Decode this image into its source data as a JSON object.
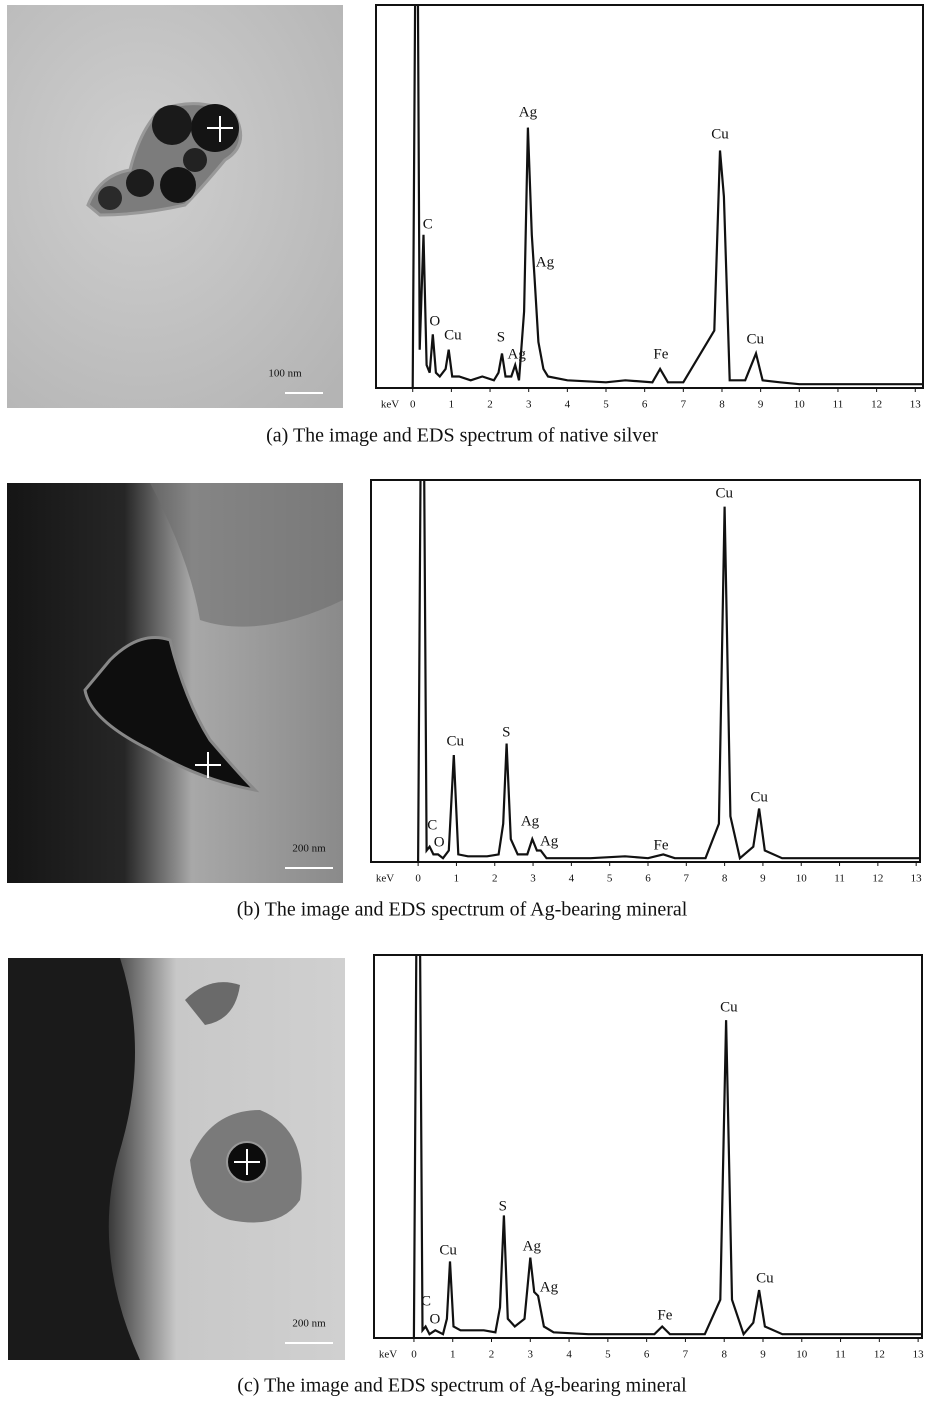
{
  "chart_data": [
    {
      "type": "line",
      "caption": "(a) The image and EDS spectrum of native silver",
      "xlabel": "keV",
      "image": {
        "scale_label": "100 nm"
      },
      "xlim": [
        -0.95,
        13.2
      ],
      "ylim": [
        0,
        100
      ],
      "xticks": [
        0,
        1,
        2,
        3,
        4,
        5,
        6,
        7,
        8,
        9,
        10,
        11,
        12,
        13
      ],
      "series": [
        {
          "color": "#111111",
          "x": [
            0,
            0.08,
            0.12,
            0.18,
            0.28,
            0.36,
            0.44,
            0.52,
            0.6,
            0.7,
            0.85,
            0.93,
            1.02,
            1.2,
            1.5,
            1.8,
            2.1,
            2.22,
            2.31,
            2.4,
            2.55,
            2.65,
            2.75,
            2.88,
            2.98,
            3.08,
            3.15,
            3.25,
            3.38,
            3.5,
            4,
            5,
            5.5,
            6.2,
            6.4,
            6.6,
            7,
            7.8,
            7.95,
            8.05,
            8.2,
            8.6,
            8.88,
            9.05,
            9.5,
            10,
            11,
            12,
            13.2
          ],
          "values": [
            0,
            130,
            130,
            10,
            40,
            6,
            4,
            14,
            4,
            3,
            5,
            10,
            3,
            3,
            2,
            3,
            2,
            4,
            9,
            3,
            3,
            6,
            2,
            20,
            68,
            40,
            29,
            12,
            5,
            3,
            2,
            1.5,
            2,
            1.5,
            5,
            1.5,
            1.5,
            15,
            62,
            50,
            2,
            2,
            9,
            2,
            1.5,
            1,
            1,
            1,
            1
          ]
        }
      ],
      "annotations": [
        {
          "text": "C",
          "x": 0.39,
          "y": 42.6
        },
        {
          "text": "Ag",
          "x": 2.98,
          "y": 71.8
        },
        {
          "text": "Ag",
          "x": 3.42,
          "y": 32.6
        },
        {
          "text": "O",
          "x": 0.57,
          "y": 17.2
        },
        {
          "text": "Cu",
          "x": 1.04,
          "y": 13.6
        },
        {
          "text": "S",
          "x": 2.28,
          "y": 13
        },
        {
          "text": "Ag",
          "x": 2.69,
          "y": 8.6
        },
        {
          "text": "Fe",
          "x": 6.42,
          "y": 8.6
        },
        {
          "text": "Cu",
          "x": 7.95,
          "y": 66
        },
        {
          "text": "Cu",
          "x": 8.86,
          "y": 12.5
        }
      ]
    },
    {
      "type": "line",
      "caption": "(b) The image and EDS spectrum of Ag-bearing mineral",
      "xlabel": "keV",
      "image": {
        "scale_label": "200 nm"
      },
      "xlim": [
        -1.23,
        13.1
      ],
      "ylim": [
        0,
        100
      ],
      "xticks": [
        0,
        1,
        2,
        3,
        4,
        5,
        6,
        7,
        8,
        9,
        10,
        11,
        12,
        13
      ],
      "series": [
        {
          "color": "#111111",
          "x": [
            0,
            0.08,
            0.14,
            0.22,
            0.3,
            0.4,
            0.52,
            0.65,
            0.8,
            0.93,
            1.05,
            1.3,
            1.8,
            2.1,
            2.22,
            2.31,
            2.42,
            2.6,
            2.85,
            2.98,
            3.1,
            3.2,
            3.35,
            3.6,
            4.5,
            5.4,
            6,
            6.4,
            6.7,
            7.5,
            7.85,
            8.0,
            8.15,
            8.4,
            8.75,
            8.9,
            9.05,
            9.5,
            11,
            13.1
          ],
          "values": [
            0,
            130,
            130,
            3,
            4,
            2,
            2,
            1,
            3,
            28,
            2,
            1.5,
            1.5,
            2,
            10,
            31,
            6,
            2,
            2,
            6,
            3,
            3,
            1,
            1,
            1,
            1.5,
            1,
            2,
            1,
            1,
            10,
            93,
            12,
            1,
            4,
            14,
            3,
            1,
            1,
            1
          ]
        }
      ],
      "annotations": [
        {
          "text": "Cu",
          "x": 7.99,
          "y": 96.3
        },
        {
          "text": "Cu",
          "x": 8.9,
          "y": 16.8
        },
        {
          "text": "Cu",
          "x": 0.97,
          "y": 31.4
        },
        {
          "text": "S",
          "x": 2.3,
          "y": 33.8
        },
        {
          "text": "Ag",
          "x": 2.92,
          "y": 10.5
        },
        {
          "text": "Ag",
          "x": 3.42,
          "y": 5.2
        },
        {
          "text": "C",
          "x": 0.37,
          "y": 9.4
        },
        {
          "text": "O",
          "x": 0.55,
          "y": 5
        },
        {
          "text": "Fe",
          "x": 6.34,
          "y": 4.2
        }
      ]
    },
    {
      "type": "line",
      "caption": "(c) The image and EDS spectrum of Ag-bearing mineral",
      "xlabel": "keV",
      "image": {
        "scale_label": "200 nm"
      },
      "xlim": [
        -1.03,
        13.1
      ],
      "ylim": [
        0,
        100
      ],
      "xticks": [
        0,
        1,
        2,
        3,
        4,
        5,
        6,
        7,
        8,
        9,
        10,
        11,
        12,
        13
      ],
      "series": [
        {
          "color": "#111111",
          "x": [
            0,
            0.08,
            0.14,
            0.22,
            0.3,
            0.4,
            0.55,
            0.75,
            0.85,
            0.93,
            1.02,
            1.2,
            1.5,
            1.8,
            2.1,
            2.22,
            2.32,
            2.42,
            2.6,
            2.85,
            3.0,
            3.1,
            3.2,
            3.35,
            3.6,
            4.5,
            5.5,
            6.2,
            6.4,
            6.6,
            7.5,
            7.9,
            8.05,
            8.2,
            8.5,
            8.75,
            8.9,
            9.05,
            9.5,
            12,
            13.1
          ],
          "values": [
            0,
            130,
            130,
            2,
            3,
            1,
            2,
            1,
            5,
            20,
            3,
            2,
            2,
            2,
            1.5,
            8,
            32,
            5,
            3,
            5,
            21,
            12,
            11,
            3,
            1.5,
            1,
            1,
            1,
            3,
            1,
            1,
            10,
            83,
            10,
            1,
            4,
            12.5,
            3,
            1,
            1,
            1
          ]
        }
      ],
      "annotations": [
        {
          "text": "Cu",
          "x": 8.12,
          "y": 86.2
        },
        {
          "text": "Cu",
          "x": 9.05,
          "y": 15.4
        },
        {
          "text": "Cu",
          "x": 0.88,
          "y": 22.7
        },
        {
          "text": "S",
          "x": 2.29,
          "y": 34.2
        },
        {
          "text": "Ag",
          "x": 3.04,
          "y": 23.8
        },
        {
          "text": "Ag",
          "x": 3.48,
          "y": 13.1
        },
        {
          "text": "C",
          "x": 0.31,
          "y": 9.4
        },
        {
          "text": "O",
          "x": 0.54,
          "y": 4.7
        },
        {
          "text": "Fe",
          "x": 6.47,
          "y": 5.7
        }
      ]
    }
  ]
}
